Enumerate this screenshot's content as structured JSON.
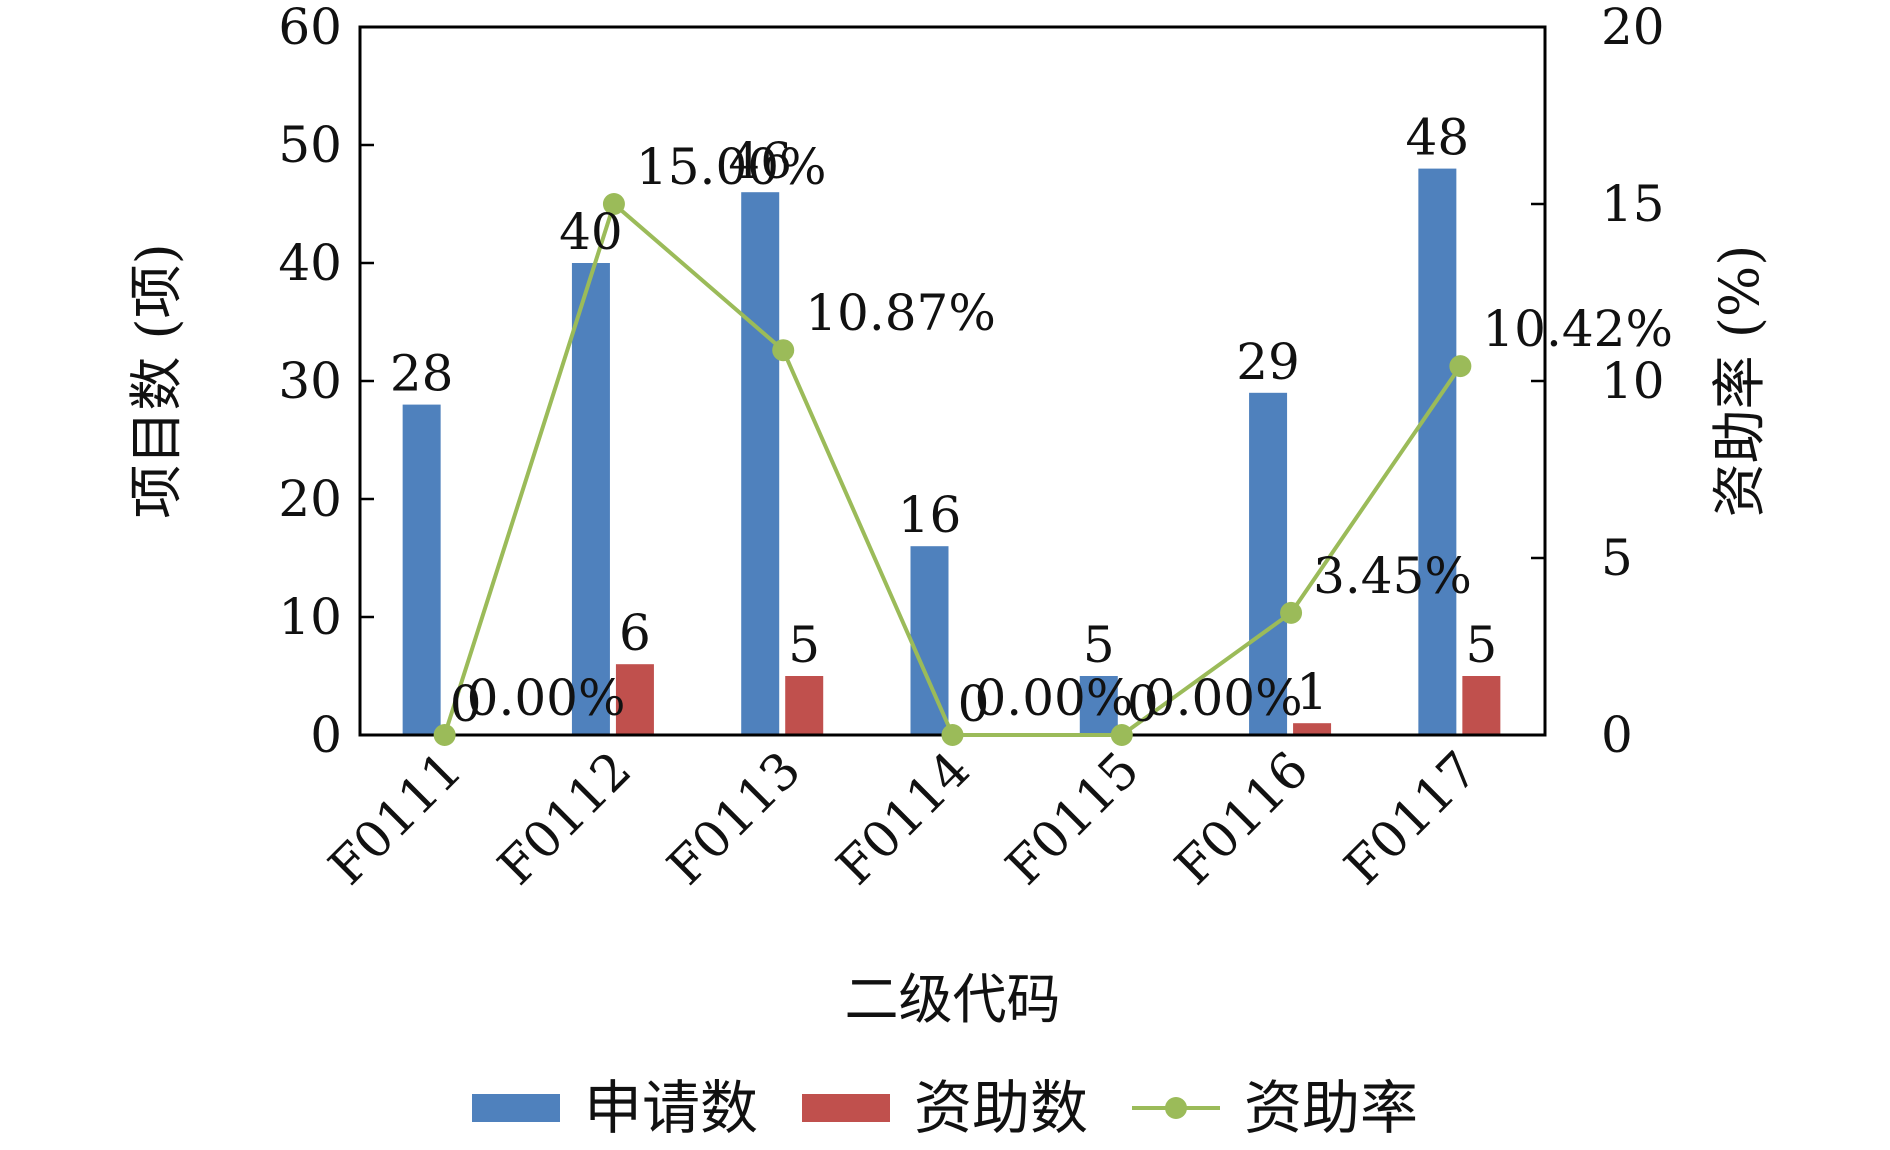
{
  "chart_data": {
    "type": "bar",
    "categories": [
      "F0111",
      "F0112",
      "F0113",
      "F0114",
      "F0115",
      "F0116",
      "F0117"
    ],
    "series": [
      {
        "name": "申请数",
        "type": "bar",
        "axis": "left",
        "color": "#4f81bd",
        "values": [
          28,
          40,
          46,
          16,
          5,
          29,
          48
        ],
        "labels": [
          "28",
          "40",
          "46",
          "16",
          "5",
          "29",
          "48"
        ]
      },
      {
        "name": "资助数",
        "type": "bar",
        "axis": "left",
        "color": "#c0504d",
        "values": [
          0,
          6,
          5,
          0,
          0,
          1,
          5
        ],
        "labels": [
          "0",
          "6",
          "5",
          "0",
          "0",
          "1",
          "5"
        ]
      },
      {
        "name": "资助率",
        "type": "line",
        "axis": "right",
        "color": "#9bbb59",
        "values": [
          0,
          15.0,
          10.87,
          0,
          0,
          3.45,
          10.42
        ],
        "labels": [
          "0.00%",
          "15.00%",
          "10.87%",
          "0.00%",
          "0.00%",
          "3.45%",
          "10.42%"
        ]
      }
    ],
    "xlabel": "二级代码",
    "ylabel": "项目数 (项)",
    "y2label": "资助率 (%)",
    "ylim": [
      0,
      60
    ],
    "yticks": [
      "0",
      "10",
      "20",
      "30",
      "40",
      "50",
      "60"
    ],
    "y2lim": [
      0,
      20
    ],
    "y2ticks": [
      "0",
      "5",
      "10",
      "15",
      "20"
    ],
    "grid": false,
    "legend_position": "bottom"
  }
}
